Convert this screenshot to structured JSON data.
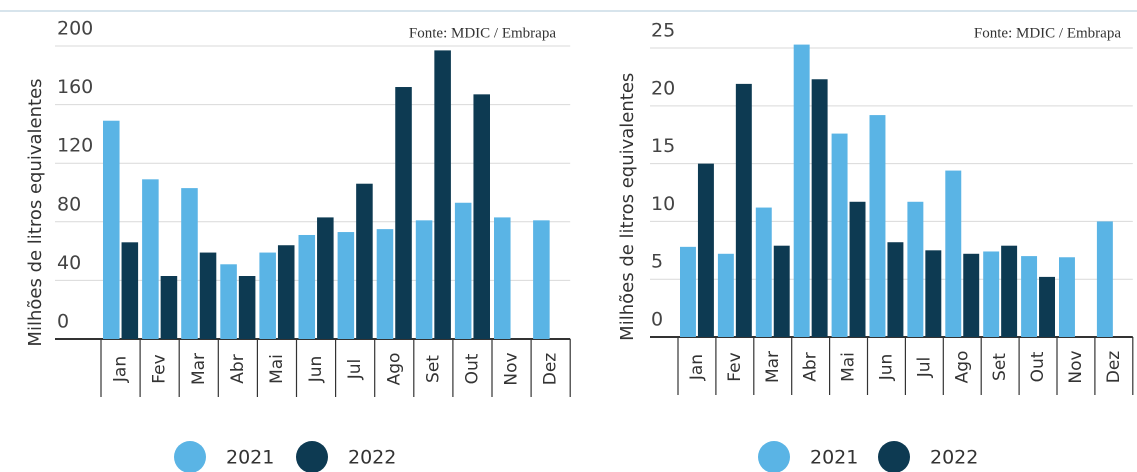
{
  "chart_data": [
    {
      "type": "bar",
      "annotation": "Fonte: MDIC / Embrapa",
      "y_label": "Milhões de litros equivalentes",
      "categories": [
        "Jan",
        "Fev",
        "Mar",
        "Abr",
        "Mai",
        "Jun",
        "Jul",
        "Ago",
        "Set",
        "Out",
        "Nov",
        "Dez"
      ],
      "series": [
        {
          "name": "2021",
          "color": "#5ab4e5",
          "values": [
            149,
            109,
            103,
            51,
            59,
            71,
            73,
            75,
            81,
            93,
            83,
            81
          ]
        },
        {
          "name": "2022",
          "color": "#0d3a52",
          "values": [
            66,
            43,
            59,
            43,
            64,
            83,
            106,
            172,
            197,
            167,
            null,
            null
          ]
        }
      ],
      "ylim": [
        0,
        200
      ],
      "yticks": [
        0,
        40,
        80,
        120,
        160,
        200
      ],
      "grid": true
    },
    {
      "type": "bar",
      "annotation": "Fonte: MDIC / Embrapa",
      "y_label": "Milhões de litros equivalentes",
      "categories": [
        "Jan",
        "Fev",
        "Mar",
        "Abr",
        "Mai",
        "Jun",
        "Jul",
        "Ago",
        "Set",
        "Out",
        "Nov",
        "Dez"
      ],
      "series": [
        {
          "name": "2021",
          "color": "#5ab4e5",
          "values": [
            7.8,
            7.2,
            11.2,
            25.3,
            17.6,
            19.2,
            11.7,
            14.4,
            7.4,
            7.0,
            6.9,
            10.0
          ]
        },
        {
          "name": "2022",
          "color": "#0d3a52",
          "values": [
            15.0,
            21.9,
            7.9,
            22.3,
            11.7,
            8.2,
            7.5,
            7.2,
            7.9,
            5.2,
            null,
            null
          ]
        }
      ],
      "ylim": [
        0,
        26
      ],
      "yticks": [
        0,
        5,
        10,
        15,
        20,
        25
      ],
      "grid": true
    }
  ]
}
